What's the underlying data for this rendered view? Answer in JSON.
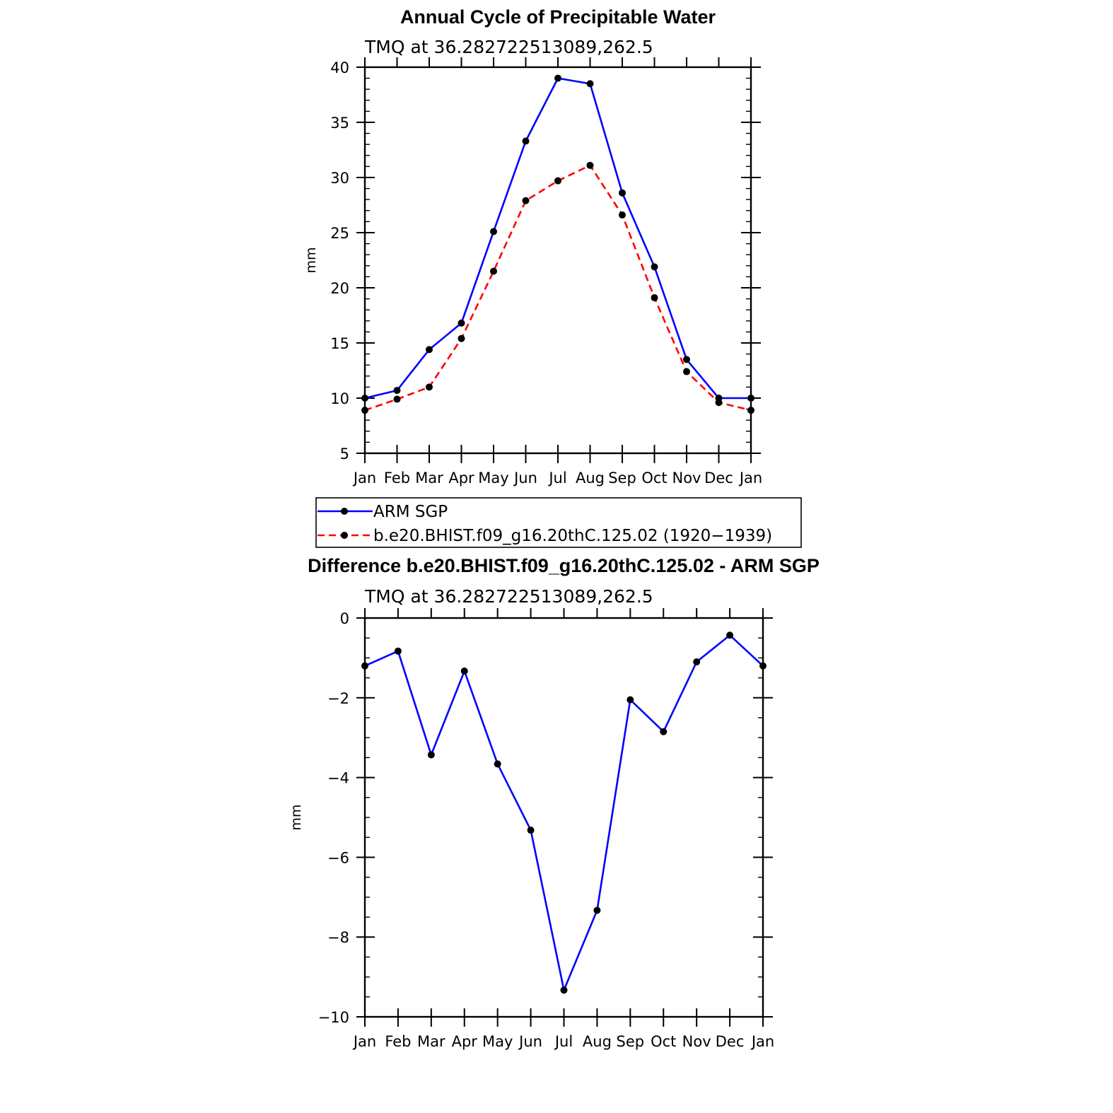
{
  "chart_data": [
    {
      "type": "line",
      "title": "Annual Cycle of Precipitable Water",
      "subtitle": "TMQ at 36.282722513089,262.5",
      "ylabel": "mm",
      "xlabel": "",
      "categories": [
        "Jan",
        "Feb",
        "Mar",
        "Apr",
        "May",
        "Jun",
        "Jul",
        "Aug",
        "Sep",
        "Oct",
        "Nov",
        "Dec",
        "Jan"
      ],
      "ylim": [
        5,
        40
      ],
      "yticks": [
        "5",
        "10",
        "15",
        "20",
        "25",
        "30",
        "35",
        "40"
      ],
      "series": [
        {
          "name": "ARM SGP",
          "color": "#0000ff",
          "line_style": "solid",
          "marker": "filled-circle",
          "values": [
            10.0,
            10.7,
            14.4,
            16.8,
            25.1,
            33.3,
            39.0,
            38.5,
            28.6,
            21.9,
            13.5,
            10.0,
            10.0
          ]
        },
        {
          "name": "b.e20.BHIST.f09_g16.20thC.125.02 (1920−1939)",
          "color": "#ff0000",
          "line_style": "dashed",
          "marker": "filled-circle",
          "values": [
            8.9,
            9.9,
            11.0,
            15.4,
            21.5,
            27.9,
            29.7,
            31.1,
            26.6,
            19.1,
            12.4,
            9.6,
            8.9
          ]
        }
      ],
      "grid": false,
      "legend_position": "below"
    },
    {
      "type": "line",
      "title": "Difference b.e20.BHIST.f09_g16.20thC.125.02 - ARM SGP",
      "subtitle": "TMQ at 36.282722513089,262.5",
      "ylabel": "mm",
      "xlabel": "",
      "categories": [
        "Jan",
        "Feb",
        "Mar",
        "Apr",
        "May",
        "Jun",
        "Jul",
        "Aug",
        "Sep",
        "Oct",
        "Nov",
        "Dec",
        "Jan"
      ],
      "ylim": [
        -10,
        0
      ],
      "yticks": [
        "−10",
        "−8",
        "−6",
        "−4",
        "−2",
        "0"
      ],
      "series": [
        {
          "color": "#0000ff",
          "line_style": "solid",
          "marker": "filled-circle",
          "values": [
            -1.2,
            -0.83,
            -3.43,
            -1.33,
            -3.66,
            -5.32,
            -9.33,
            -7.33,
            -2.05,
            -2.85,
            -1.1,
            -0.43,
            -1.2
          ]
        }
      ],
      "grid": false
    }
  ]
}
